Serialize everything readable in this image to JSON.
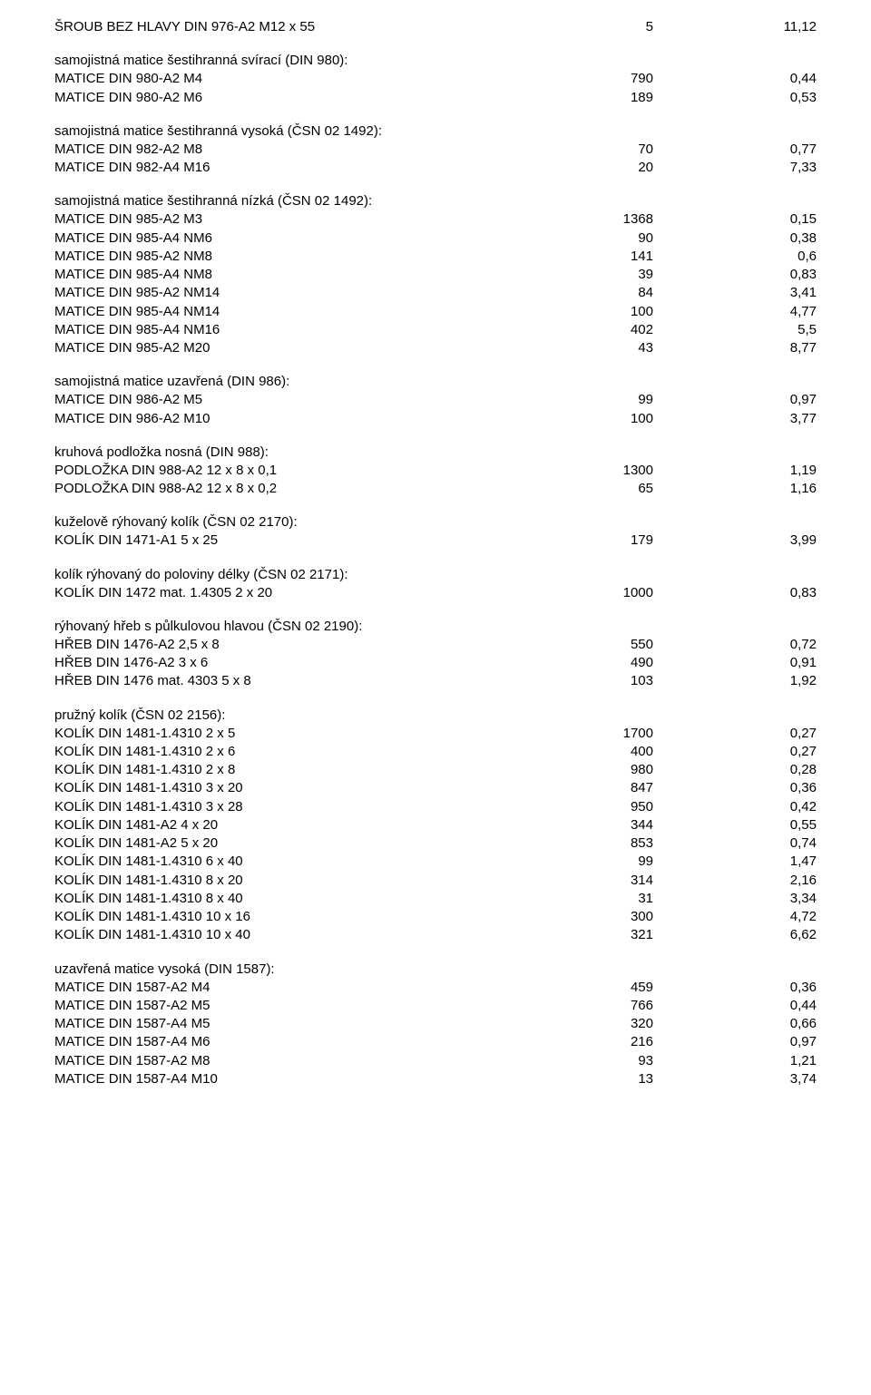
{
  "orphan": {
    "name": "ŠROUB BEZ HLAVY DIN 976-A2 M12 x 55",
    "qty": "5",
    "price": "11,12"
  },
  "sections": [
    {
      "title": "samojistná matice šestihranná svírací (DIN 980):",
      "rows": [
        {
          "name": "MATICE DIN 980-A2 M4",
          "qty": "790",
          "price": "0,44"
        },
        {
          "name": "MATICE DIN 980-A2 M6",
          "qty": "189",
          "price": "0,53"
        }
      ]
    },
    {
      "title": "samojistná matice šestihranná vysoká (ČSN 02 1492):",
      "rows": [
        {
          "name": "MATICE DIN 982-A2 M8",
          "qty": "70",
          "price": "0,77"
        },
        {
          "name": "MATICE DIN 982-A4 M16",
          "qty": "20",
          "price": "7,33"
        }
      ]
    },
    {
      "title": "samojistná matice šestihranná nízká (ČSN 02 1492):",
      "rows": [
        {
          "name": "MATICE DIN 985-A2 M3",
          "qty": "1368",
          "price": "0,15"
        },
        {
          "name": "MATICE DIN 985-A4 NM6",
          "qty": "90",
          "price": "0,38"
        },
        {
          "name": "MATICE DIN 985-A2 NM8",
          "qty": "141",
          "price": "0,6"
        },
        {
          "name": "MATICE DIN 985-A4 NM8",
          "qty": "39",
          "price": "0,83"
        },
        {
          "name": "MATICE DIN 985-A2 NM14",
          "qty": "84",
          "price": "3,41"
        },
        {
          "name": "MATICE DIN 985-A4 NM14",
          "qty": "100",
          "price": "4,77"
        },
        {
          "name": "MATICE DIN 985-A4 NM16",
          "qty": "402",
          "price": "5,5"
        },
        {
          "name": "MATICE DIN 985-A2 M20",
          "qty": "43",
          "price": "8,77"
        }
      ]
    },
    {
      "title": "samojistná matice uzavřená (DIN 986):",
      "rows": [
        {
          "name": "MATICE DIN 986-A2 M5",
          "qty": "99",
          "price": "0,97"
        },
        {
          "name": "MATICE DIN 986-A2 M10",
          "qty": "100",
          "price": "3,77"
        }
      ]
    },
    {
      "title": "kruhová podložka nosná (DIN 988):",
      "rows": [
        {
          "name": "PODLOŽKA DIN 988-A2 12 x 8 x 0,1",
          "qty": "1300",
          "price": "1,19"
        },
        {
          "name": "PODLOŽKA DIN 988-A2 12 x 8 x 0,2",
          "qty": "65",
          "price": "1,16"
        }
      ]
    },
    {
      "title": "kuželově rýhovaný kolík (ČSN 02 2170):",
      "rows": [
        {
          "name": "KOLÍK DIN 1471-A1 5 x 25",
          "qty": "179",
          "price": "3,99"
        }
      ]
    },
    {
      "title": "kolík rýhovaný do poloviny délky (ČSN 02 2171):",
      "rows": [
        {
          "name": "KOLÍK DIN 1472 mat. 1.4305 2 x 20",
          "qty": "1000",
          "price": "0,83"
        }
      ]
    },
    {
      "title": "rýhovaný hřeb s půlkulovou hlavou (ČSN 02 2190):",
      "rows": [
        {
          "name": "HŘEB DIN 1476-A2 2,5 x 8",
          "qty": "550",
          "price": "0,72"
        },
        {
          "name": "HŘEB DIN 1476-A2 3 x 6",
          "qty": "490",
          "price": "0,91"
        },
        {
          "name": "HŘEB DIN 1476 mat. 4303 5 x 8",
          "qty": "103",
          "price": "1,92"
        }
      ]
    },
    {
      "title": "pružný kolík (ČSN 02 2156):",
      "rows": [
        {
          "name": "KOLÍK DIN 1481-1.4310 2 x 5",
          "qty": "1700",
          "price": "0,27"
        },
        {
          "name": "KOLÍK DIN 1481-1.4310 2 x 6",
          "qty": "400",
          "price": "0,27"
        },
        {
          "name": "KOLÍK DIN 1481-1.4310 2 x 8",
          "qty": "980",
          "price": "0,28"
        },
        {
          "name": "KOLÍK DIN 1481-1.4310  3 x 20",
          "qty": "847",
          "price": "0,36"
        },
        {
          "name": "KOLÍK DIN 1481-1.4310  3 x 28",
          "qty": "950",
          "price": "0,42"
        },
        {
          "name": "KOLÍK DIN 1481-A2 4 x 20",
          "qty": "344",
          "price": "0,55"
        },
        {
          "name": "KOLÍK DIN 1481-A2  5 x 20",
          "qty": "853",
          "price": "0,74"
        },
        {
          "name": "KOLÍK DIN 1481-1.4310 6 x 40",
          "qty": "99",
          "price": "1,47"
        },
        {
          "name": "KOLÍK DIN 1481-1.4310 8 x 20",
          "qty": "314",
          "price": "2,16"
        },
        {
          "name": "KOLÍK DIN 1481-1.4310 8 x 40",
          "qty": "31",
          "price": "3,34"
        },
        {
          "name": "KOLÍK DIN 1481-1.4310 10 x 16",
          "qty": "300",
          "price": "4,72"
        },
        {
          "name": "KOLÍK DIN 1481-1.4310 10 x 40",
          "qty": "321",
          "price": "6,62"
        }
      ]
    },
    {
      "title": "uzavřená matice vysoká (DIN 1587):",
      "rows": [
        {
          "name": "MATICE DIN 1587-A2 M4",
          "qty": "459",
          "price": "0,36"
        },
        {
          "name": "MATICE DIN 1587-A2 M5",
          "qty": "766",
          "price": "0,44"
        },
        {
          "name": "MATICE DIN 1587-A4 M5",
          "qty": "320",
          "price": "0,66"
        },
        {
          "name": "MATICE DIN 1587-A4 M6",
          "qty": "216",
          "price": "0,97"
        },
        {
          "name": "MATICE DIN 1587-A2 M8",
          "qty": "93",
          "price": "1,21"
        },
        {
          "name": "MATICE DIN 1587-A4 M10",
          "qty": "13",
          "price": "3,74"
        }
      ]
    }
  ]
}
